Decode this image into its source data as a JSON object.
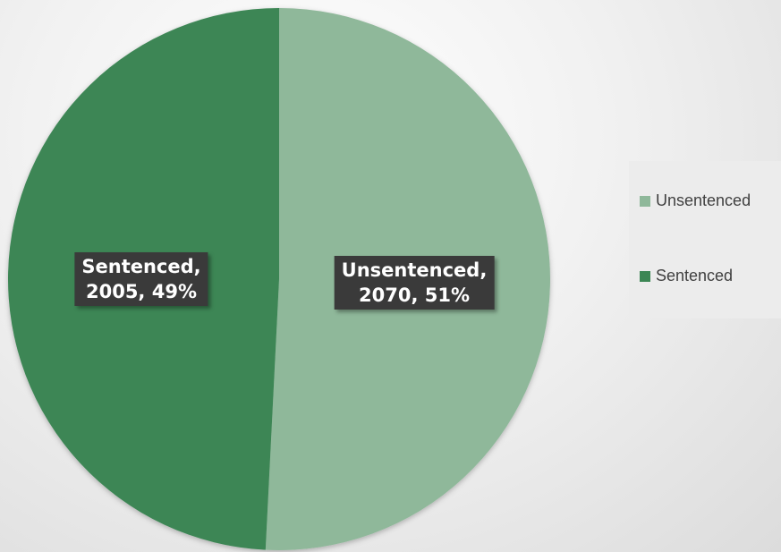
{
  "chart_data": {
    "type": "pie",
    "title": "",
    "slices": [
      {
        "name": "Unsentenced",
        "value": 2070,
        "percent": 51,
        "color": "#8fb89a",
        "label_line1": "Unsentenced,",
        "label_line2": "2070, 51%"
      },
      {
        "name": "Sentenced",
        "value": 2005,
        "percent": 49,
        "color": "#3c8654",
        "label_line1": "Sentenced,",
        "label_line2": "2005, 49%"
      }
    ],
    "legend": {
      "position": "right",
      "entries": [
        "Unsentenced",
        "Sentenced"
      ]
    },
    "start_angle": "12 o'clock",
    "direction": "clockwise"
  }
}
